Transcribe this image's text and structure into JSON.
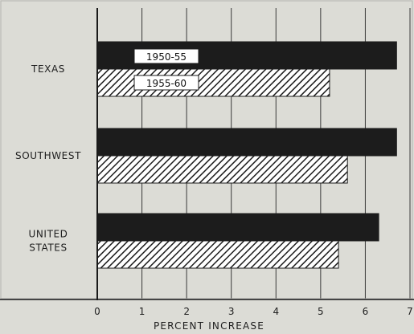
{
  "chart_data": {
    "type": "bar",
    "orientation": "horizontal",
    "title": "",
    "xlabel": "PERCENT INCREASE",
    "ylabel": "",
    "categories": [
      [
        "TEXAS"
      ],
      [
        "SOUTHWEST"
      ],
      [
        "UNITED",
        "STATES"
      ]
    ],
    "series": [
      {
        "name": "1950-55",
        "values": [
          6.7,
          6.7,
          6.3
        ],
        "pattern": "solid",
        "color": "#1c1c1c"
      },
      {
        "name": "1955-60",
        "values": [
          5.2,
          5.6,
          5.4
        ],
        "pattern": "hatched",
        "color": "#1c1c1c"
      }
    ],
    "xlim": [
      0,
      7
    ],
    "xticks": [
      0,
      1,
      2,
      3,
      4,
      5,
      6,
      7
    ],
    "grid": true,
    "legend": "inside-top-left-of-first-category",
    "background": "#dcdcd6"
  }
}
